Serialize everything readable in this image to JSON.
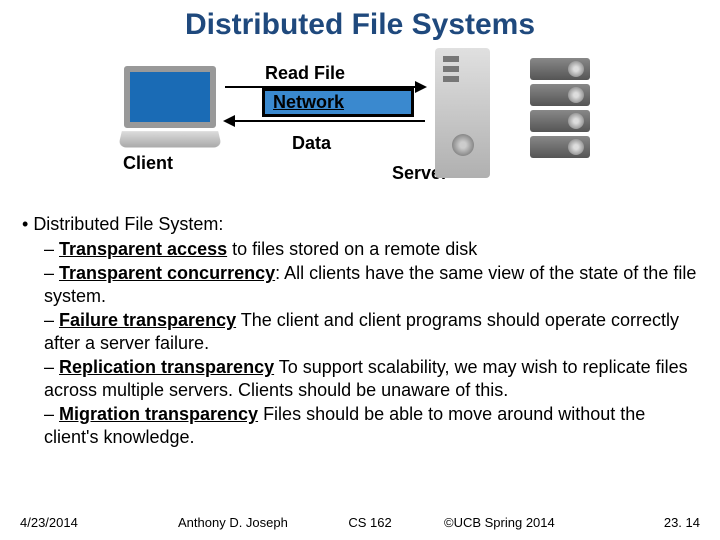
{
  "title": "Distributed File Systems",
  "diagram": {
    "read_label": "Read File",
    "network_label": "Network",
    "data_label": "Data",
    "client_label": "Client",
    "server_label": "Server",
    "colors": {
      "title": "#1f497d",
      "network_bg": "#3a89cf",
      "laptop_screen": "#1a6bb5"
    }
  },
  "content": {
    "main_bullet": "Distributed File System:",
    "items": [
      {
        "strong": "Transparent access",
        "rest": " to files stored on a remote disk"
      },
      {
        "strong": "Transparent concurrency",
        "rest": ": All clients have the same view of the state of the file system."
      },
      {
        "strong": "Failure transparency",
        "rest": " The client and client programs should operate correctly after a server failure."
      },
      {
        "strong": "Replication transparency",
        "rest": " To support scalability, we may wish to replicate files across multiple servers. Clients should be unaware of this."
      },
      {
        "strong": "Migration transparency",
        "rest": " Files should be able to move around without the client's knowledge."
      }
    ]
  },
  "footer": {
    "date": "4/23/2014",
    "author": "Anthony D. Joseph",
    "course": "CS 162",
    "copyright": "©UCB Spring 2014",
    "page": "23. 14"
  }
}
